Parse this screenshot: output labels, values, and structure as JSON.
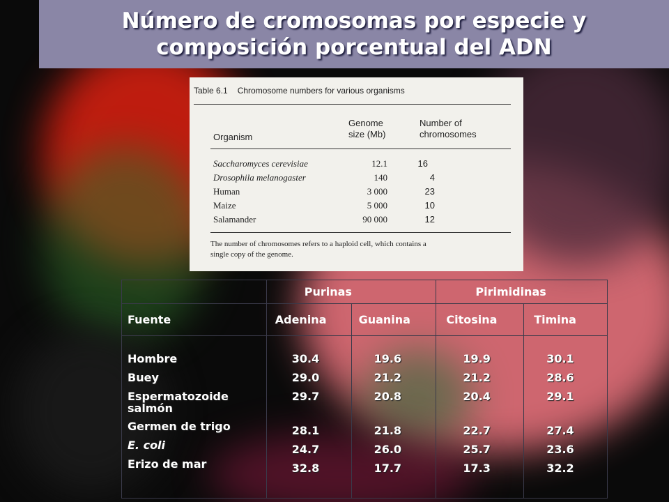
{
  "title": {
    "line1": "Número de cromosomas por especie y",
    "line2": "composición porcentual del ADN"
  },
  "scan_table": {
    "caption_number": "Table 6.1",
    "caption_text": "Chromosome numbers for various organisms",
    "columns": [
      "Organism",
      "Genome size (Mb)",
      "Number of chromosomes"
    ],
    "col_organism": "Organism",
    "col_genome_l1": "Genome",
    "col_genome_l2": "size (Mb)",
    "col_chrom_l1": "Number of",
    "col_chrom_l2": "chromosomes",
    "rows": [
      {
        "organism": "Saccharomyces cerevisiae",
        "genome": "12.1",
        "chromosomes": "16"
      },
      {
        "organism": "Drosophila melanogaster",
        "genome": "140",
        "chromosomes": "4"
      },
      {
        "organism": "Human",
        "genome": "3 000",
        "chromosomes": "23"
      },
      {
        "organism": "Maize",
        "genome": "5 000",
        "chromosomes": "10"
      },
      {
        "organism": "Salamander",
        "genome": "90 000",
        "chromosomes": "12"
      }
    ],
    "footnote_l1": "The number of chromosomes refers to a haploid cell, which contains a",
    "footnote_l2": "single copy of  the genome."
  },
  "dna_table": {
    "group_headers": {
      "purinas": "Purinas",
      "pirimidinas": "Pirimidinas"
    },
    "headers": {
      "fuente": "Fuente",
      "adenina": "Adenina",
      "guanina": "Guanina",
      "citosina": "Citosina",
      "timina": "Timina"
    },
    "sources": [
      "Hombre",
      "Buey",
      "Espermatozoide salmón",
      "Germen de trigo",
      "E. coli",
      "Erizo de mar"
    ],
    "adenina": [
      "30.4",
      "29.0",
      "29.7",
      "28.1",
      "24.7",
      "32.8"
    ],
    "guanina": [
      "19.6",
      "21.2",
      "20.8",
      "21.8",
      "26.0",
      "17.7"
    ],
    "citosina": [
      "19.9",
      "21.2",
      "20.4",
      "22.7",
      "25.7",
      "17.3"
    ],
    "timina": [
      "30.1",
      "28.6",
      "29.1",
      "27.4",
      "23.6",
      "32.2"
    ]
  },
  "colors": {
    "title_bar": "#8a86a6",
    "text": "#ffffff",
    "background": "#0a0a0a"
  }
}
